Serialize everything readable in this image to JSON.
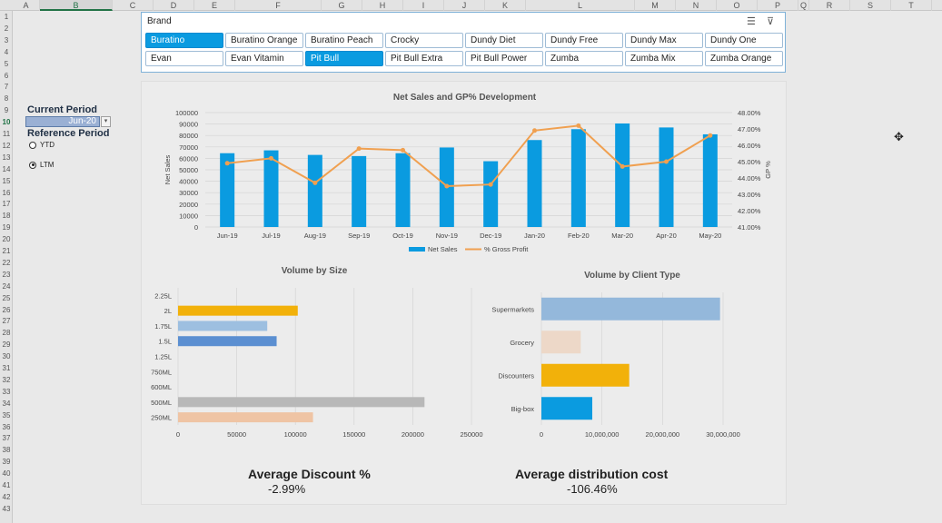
{
  "sheet": {
    "columns": [
      "A",
      "B",
      "C",
      "D",
      "E",
      "F",
      "G",
      "H",
      "I",
      "J",
      "K",
      "L",
      "M",
      "N",
      "O",
      "P",
      "Q",
      "R",
      "S",
      "T"
    ],
    "selected_column": "B",
    "rows": [
      "1",
      "2",
      "3",
      "4",
      "5",
      "6",
      "7",
      "8",
      "9",
      "10",
      "11",
      "12",
      "13",
      "14",
      "15",
      "16",
      "17",
      "18",
      "19",
      "20",
      "21",
      "22",
      "23",
      "24",
      "25",
      "26",
      "27",
      "28",
      "29",
      "30",
      "31",
      "32",
      "33",
      "34",
      "35",
      "36",
      "37",
      "38",
      "39",
      "40",
      "41",
      "42",
      "43"
    ],
    "selected_row": "10"
  },
  "controls": {
    "current_period_label": "Current Period",
    "current_period_value": "Jun-20",
    "reference_period_label": "Reference Period",
    "options": [
      {
        "label": "YTD",
        "checked": false
      },
      {
        "label": "LTM",
        "checked": true
      }
    ]
  },
  "slicer": {
    "title": "Brand",
    "buttons": [
      {
        "label": "Buratino",
        "selected": true
      },
      {
        "label": "Buratino Orange",
        "selected": false
      },
      {
        "label": "Buratino Peach",
        "selected": false
      },
      {
        "label": "Crocky",
        "selected": false
      },
      {
        "label": "Dundy Diet",
        "selected": false
      },
      {
        "label": "Dundy Free",
        "selected": false
      },
      {
        "label": "Dundy Max",
        "selected": false
      },
      {
        "label": "Dundy One",
        "selected": false
      },
      {
        "label": "Evan",
        "selected": false
      },
      {
        "label": "Evan Vitamin",
        "selected": false
      },
      {
        "label": "Pit Bull",
        "selected": true
      },
      {
        "label": "Pit Bull Extra",
        "selected": false
      },
      {
        "label": "Pit Bull Power",
        "selected": false
      },
      {
        "label": "Zumba",
        "selected": false
      },
      {
        "label": "Zumba Mix",
        "selected": false
      },
      {
        "label": "Zumba Orange",
        "selected": false
      }
    ],
    "icons": [
      "multi-select-icon",
      "clear-filter-icon"
    ]
  },
  "chart_data": [
    {
      "type": "bar",
      "title": "Net Sales and GP% Development",
      "categories": [
        "Jun-19",
        "Jul-19",
        "Aug-19",
        "Sep-19",
        "Oct-19",
        "Nov-19",
        "Dec-19",
        "Jan-20",
        "Feb-20",
        "Mar-20",
        "Apr-20",
        "May-20"
      ],
      "series": [
        {
          "name": "Net Sales",
          "type": "bar",
          "color": "#0a9be0",
          "values": [
            64500,
            67000,
            63000,
            62000,
            64500,
            69500,
            57500,
            76000,
            85500,
            90500,
            87000,
            81000
          ]
        },
        {
          "name": "% Gross Profit",
          "type": "line",
          "axis": "right",
          "color": "#f0a050",
          "values": [
            44.9,
            45.2,
            43.7,
            45.8,
            45.7,
            43.5,
            43.6,
            46.9,
            47.2,
            44.7,
            45.0,
            46.6
          ]
        }
      ],
      "ylabel": "Net Sales",
      "y2label": "GP %",
      "ylim": [
        0,
        100000
      ],
      "yticks": [
        "0",
        "10000",
        "20000",
        "30000",
        "40000",
        "50000",
        "60000",
        "70000",
        "80000",
        "90000",
        "100000"
      ],
      "y2lim": [
        41,
        48
      ],
      "y2ticks": [
        "41.00%",
        "42.00%",
        "43.00%",
        "44.00%",
        "45.00%",
        "46.00%",
        "47.00%",
        "48.00%"
      ],
      "legend": "bottom",
      "grid": true
    },
    {
      "type": "bar",
      "orientation": "horizontal",
      "title": "Volume by Size",
      "categories": [
        "2.25L",
        "2L",
        "1.75L",
        "1.5L",
        "1.25L",
        "750ML",
        "600ML",
        "500ML",
        "250ML"
      ],
      "values": [
        0,
        102000,
        76000,
        84000,
        0,
        0,
        0,
        210000,
        115000
      ],
      "colors": [
        "#0a9be0",
        "#f2b10a",
        "#9dbfe0",
        "#5b8fd1",
        "#0a9be0",
        "#0a9be0",
        "#0a9be0",
        "#b8b8b8",
        "#efc4a4"
      ],
      "xlim": [
        0,
        250000
      ],
      "xticks": [
        "0",
        "50000",
        "100000",
        "150000",
        "200000",
        "250000"
      ],
      "grid": true
    },
    {
      "type": "bar",
      "orientation": "horizontal",
      "title": "Volume by Client Type",
      "categories": [
        "Supermarkets",
        "Grocery",
        "Discounters",
        "Big-box"
      ],
      "values": [
        29500000,
        6500000,
        14500000,
        8400000
      ],
      "colors": [
        "#94b8db",
        "#edd8c8",
        "#f2b10a",
        "#0a9be0"
      ],
      "xlim": [
        0,
        30000000
      ],
      "xticks": [
        "0",
        "10,000,000",
        "20,000,000",
        "30,000,000"
      ],
      "grid": true
    }
  ],
  "kpis": {
    "discount_title": "Average Discount %",
    "discount_value": "-2.99%",
    "distribution_title": "Average distribution cost",
    "distribution_value": "-106.46%"
  }
}
